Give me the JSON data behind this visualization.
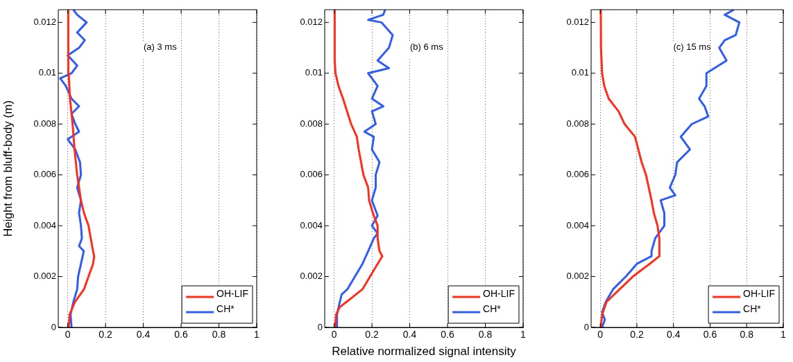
{
  "chart_data": [
    {
      "type": "line",
      "ylabel": "Height from bluff-body (m)",
      "annotations": [
        "(a) 3 ms"
      ],
      "xlim": [
        -0.05,
        1
      ],
      "xticks": [
        0,
        0.2,
        0.4,
        0.6,
        0.8,
        1
      ],
      "ylim": [
        0,
        0.0125
      ],
      "yticks": [
        0,
        0.002,
        0.004,
        0.006,
        0.008,
        0.01,
        0.012
      ],
      "grid": "x",
      "legend": "bottom right",
      "marker": "none",
      "line_style": "solid",
      "series": [
        {
          "name": "OH-LIF",
          "color": "#ff2d1a",
          "x": [
            0.005,
            0.01,
            0.038,
            0.086,
            0.11,
            0.134,
            0.14,
            0.134,
            0.122,
            0.11,
            0.086,
            0.07,
            0.05,
            0.036,
            0.026,
            0.012,
            0.005,
            0.003
          ],
          "values": [
            0,
            0.0005,
            0.001,
            0.0015,
            0.002,
            0.0025,
            0.0028,
            0.003,
            0.0035,
            0.004,
            0.0045,
            0.005,
            0.006,
            0.007,
            0.008,
            0.009,
            0.01,
            0.0125
          ]
        },
        {
          "name": "CH*",
          "color": "#2f5cf5",
          "x": [
            0.02,
            0.015,
            0.03,
            0.05,
            0.055,
            0.07,
            0.085,
            0.06,
            0.075,
            0.07,
            0.06,
            0.07,
            0.05,
            0.07,
            0.065,
            0.04,
            0.0,
            0.06,
            0.04,
            0.02,
            0.06,
            0.02,
            -0.01,
            -0.04,
            0.02,
            0.05,
            0.0,
            0.06,
            0.09,
            0.05,
            0.1,
            0.05,
            0.03
          ],
          "values": [
            0,
            0.0005,
            0.001,
            0.0015,
            0.002,
            0.0025,
            0.003,
            0.0032,
            0.0035,
            0.004,
            0.0045,
            0.005,
            0.0055,
            0.006,
            0.0065,
            0.007,
            0.0074,
            0.0077,
            0.008,
            0.0084,
            0.0087,
            0.009,
            0.0095,
            0.0098,
            0.01,
            0.0103,
            0.0107,
            0.011,
            0.0113,
            0.0116,
            0.012,
            0.0123,
            0.0125
          ]
        }
      ]
    },
    {
      "type": "line",
      "xlabel": "Relative normalized signal intensity",
      "annotations": [
        "(b) 6 ms"
      ],
      "xlim": [
        -0.05,
        1
      ],
      "xticks": [
        0,
        0.2,
        0.4,
        0.6,
        0.8,
        1
      ],
      "ylim": [
        0,
        0.0125
      ],
      "yticks": [
        0,
        0.002,
        0.004,
        0.006,
        0.008,
        0.01,
        0.012
      ],
      "grid": "x",
      "legend": "bottom right",
      "marker": "none",
      "line_style": "solid",
      "series": [
        {
          "name": "OH-LIF",
          "color": "#ff2d1a",
          "x": [
            0.005,
            0.01,
            0.03,
            0.065,
            0.15,
            0.19,
            0.23,
            0.255,
            0.24,
            0.23,
            0.23,
            0.205,
            0.185,
            0.18,
            0.155,
            0.13,
            0.12,
            0.09,
            0.047,
            0.023,
            0.007,
            0.003,
            0.003
          ],
          "values": [
            0,
            0.0005,
            0.0008,
            0.001,
            0.0015,
            0.002,
            0.0025,
            0.0028,
            0.003,
            0.0035,
            0.004,
            0.0045,
            0.005,
            0.0055,
            0.006,
            0.007,
            0.0075,
            0.008,
            0.009,
            0.0095,
            0.01,
            0.0105,
            0.0125
          ]
        },
        {
          "name": "CH*",
          "color": "#2f5cf5",
          "x": [
            0.015,
            0.015,
            0.03,
            0.04,
            0.07,
            0.11,
            0.15,
            0.18,
            0.21,
            0.23,
            0.2,
            0.23,
            0.2,
            0.22,
            0.22,
            0.24,
            0.2,
            0.21,
            0.16,
            0.22,
            0.2,
            0.26,
            0.2,
            0.23,
            0.18,
            0.29,
            0.23,
            0.29,
            0.31,
            0.25,
            0.18,
            0.26,
            0.27
          ],
          "values": [
            0,
            0.0005,
            0.001,
            0.0013,
            0.0015,
            0.002,
            0.0025,
            0.003,
            0.0035,
            0.0037,
            0.004,
            0.0044,
            0.005,
            0.0055,
            0.006,
            0.0065,
            0.007,
            0.0075,
            0.0077,
            0.008,
            0.0085,
            0.0087,
            0.009,
            0.0095,
            0.01,
            0.0102,
            0.0105,
            0.011,
            0.0115,
            0.012,
            0.0121,
            0.0123,
            0.0125
          ]
        }
      ]
    },
    {
      "type": "line",
      "annotations": [
        "(c) 15 ms"
      ],
      "xlim": [
        -0.05,
        1
      ],
      "xticks": [
        0,
        0.2,
        0.4,
        0.6,
        0.8,
        1
      ],
      "ylim": [
        0,
        0.0125
      ],
      "yticks": [
        0,
        0.002,
        0.004,
        0.006,
        0.008,
        0.01,
        0.012
      ],
      "grid": "x",
      "legend": "bottom right",
      "marker": "none",
      "line_style": "solid",
      "series": [
        {
          "name": "OH-LIF",
          "color": "#ff2d1a",
          "x": [
            0.003,
            0.01,
            0.034,
            0.106,
            0.178,
            0.27,
            0.323,
            0.323,
            0.313,
            0.293,
            0.28,
            0.25,
            0.226,
            0.208,
            0.19,
            0.133,
            0.1,
            0.046,
            0.022,
            0.01,
            0.004,
            0.003
          ],
          "values": [
            0,
            0.0005,
            0.001,
            0.0015,
            0.002,
            0.0025,
            0.0028,
            0.0035,
            0.004,
            0.0045,
            0.005,
            0.006,
            0.0065,
            0.007,
            0.0075,
            0.008,
            0.0085,
            0.009,
            0.0095,
            0.01,
            0.011,
            0.0125
          ]
        },
        {
          "name": "CH*",
          "color": "#2f5cf5",
          "x": [
            0.01,
            0.025,
            0.01,
            0.03,
            0.07,
            0.14,
            0.2,
            0.28,
            0.28,
            0.3,
            0.35,
            0.35,
            0.33,
            0.41,
            0.38,
            0.41,
            0.42,
            0.49,
            0.44,
            0.5,
            0.59,
            0.57,
            0.54,
            0.58,
            0.58,
            0.69,
            0.65,
            0.68,
            0.74,
            0.76,
            0.68,
            0.73
          ],
          "values": [
            0,
            0.0003,
            0.0006,
            0.001,
            0.0015,
            0.002,
            0.0025,
            0.0028,
            0.003,
            0.0035,
            0.004,
            0.0045,
            0.005,
            0.0052,
            0.0055,
            0.006,
            0.0065,
            0.007,
            0.0075,
            0.008,
            0.0083,
            0.0087,
            0.009,
            0.0095,
            0.01,
            0.0105,
            0.011,
            0.0113,
            0.0115,
            0.012,
            0.0123,
            0.0125
          ]
        }
      ]
    }
  ]
}
